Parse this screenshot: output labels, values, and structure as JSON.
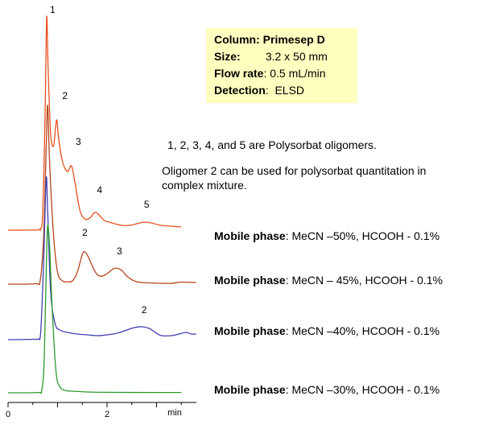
{
  "info_box": {
    "column_label": "Column",
    "column_value": "Primesep D",
    "size_label": "Size:",
    "size_value": "3.2 x 50 mm",
    "flow_label": "Flow rate",
    "flow_value": "0.5  mL/min",
    "detection_label": "Detection",
    "detection_value": "ELSD"
  },
  "notes": {
    "line1": "1, 2, 3, 4, and 5  are Polysorbat oligomers.",
    "line2": "Oligomer 2 can be used for polysorbat quantitation in",
    "line3": "complex mixture."
  },
  "mobile_phase_label": "Mobile phase",
  "chart_data": {
    "type": "line",
    "xlabel": "min",
    "x_ticks": [
      "0",
      "2"
    ],
    "xlim": [
      0,
      3.8
    ],
    "y_axis_shown": false,
    "grid": false,
    "series": [
      {
        "name": "MeCN –50%, HCOOH - 0.1%",
        "color": "#e8501e",
        "points": [
          [
            0,
            0
          ],
          [
            0.6,
            0.4
          ],
          [
            0.65,
            2
          ],
          [
            0.7,
            20
          ],
          [
            0.75,
            150
          ],
          [
            0.78,
            265
          ],
          [
            0.81,
            200
          ],
          [
            0.86,
            120
          ],
          [
            0.92,
            105
          ],
          [
            0.98,
            137
          ],
          [
            1.02,
            115
          ],
          [
            1.1,
            85
          ],
          [
            1.2,
            73
          ],
          [
            1.28,
            80
          ],
          [
            1.35,
            60
          ],
          [
            1.45,
            25
          ],
          [
            1.55,
            14
          ],
          [
            1.65,
            15
          ],
          [
            1.75,
            22
          ],
          [
            1.82,
            20
          ],
          [
            1.95,
            12
          ],
          [
            2.1,
            9
          ],
          [
            2.3,
            6
          ],
          [
            2.45,
            6
          ],
          [
            2.6,
            8
          ],
          [
            2.75,
            10
          ],
          [
            2.9,
            9
          ],
          [
            3.1,
            6
          ],
          [
            3.5,
            4
          ]
        ],
        "peak_labels": [
          {
            "label": "1",
            "x": 0.9,
            "y": 270
          },
          {
            "label": "2",
            "x": 1.15,
            "y": 163
          },
          {
            "label": "3",
            "x": 1.42,
            "y": 106
          },
          {
            "label": "4",
            "x": 1.85,
            "y": 46
          },
          {
            "label": "5",
            "x": 2.8,
            "y": 28
          }
        ]
      },
      {
        "name": "MeCN – 45%, HCOOH - 0.1%",
        "color": "#b5441c",
        "points": [
          [
            0,
            0
          ],
          [
            0.55,
            0.5
          ],
          [
            0.65,
            5
          ],
          [
            0.72,
            60
          ],
          [
            0.77,
            170
          ],
          [
            0.8,
            222
          ],
          [
            0.84,
            150
          ],
          [
            0.92,
            60
          ],
          [
            1.0,
            15
          ],
          [
            1.1,
            4
          ],
          [
            1.2,
            3
          ],
          [
            1.3,
            4
          ],
          [
            1.4,
            15
          ],
          [
            1.5,
            37
          ],
          [
            1.55,
            40
          ],
          [
            1.62,
            34
          ],
          [
            1.72,
            20
          ],
          [
            1.8,
            12
          ],
          [
            1.9,
            10
          ],
          [
            2.0,
            13
          ],
          [
            2.1,
            18
          ],
          [
            2.18,
            20
          ],
          [
            2.3,
            17
          ],
          [
            2.4,
            10
          ],
          [
            2.55,
            4
          ],
          [
            2.7,
            2
          ],
          [
            2.9,
            1.5
          ],
          [
            3.1,
            1
          ],
          [
            3.3,
            1
          ],
          [
            3.5,
            2.5
          ],
          [
            3.8,
            2
          ]
        ],
        "peak_labels": [
          {
            "label": "2",
            "x": 1.55,
            "y": 60
          },
          {
            "label": "3",
            "x": 2.25,
            "y": 37
          }
        ]
      },
      {
        "name": "MeCN –40%, HCOOH - 0.1%",
        "color": "#4040b0",
        "points": [
          [
            0,
            0
          ],
          [
            0.5,
            0.5
          ],
          [
            0.6,
            1
          ],
          [
            0.66,
            10
          ],
          [
            0.72,
            100
          ],
          [
            0.77,
            200
          ],
          [
            0.8,
            160
          ],
          [
            0.86,
            60
          ],
          [
            0.95,
            20
          ],
          [
            1.05,
            12
          ],
          [
            1.2,
            9
          ],
          [
            1.4,
            7
          ],
          [
            1.6,
            6
          ],
          [
            1.8,
            5
          ],
          [
            2.0,
            6
          ],
          [
            2.2,
            8
          ],
          [
            2.4,
            12
          ],
          [
            2.55,
            15
          ],
          [
            2.7,
            16
          ],
          [
            2.85,
            14
          ],
          [
            3.0,
            8
          ],
          [
            3.1,
            5
          ],
          [
            3.3,
            5
          ],
          [
            3.45,
            7
          ],
          [
            3.6,
            9
          ],
          [
            3.7,
            7
          ],
          [
            3.8,
            7
          ]
        ],
        "peak_labels": [
          {
            "label": "2",
            "x": 2.75,
            "y": 33
          }
        ]
      },
      {
        "name": "MeCN –30%, HCOOH - 0.1%",
        "color": "#2d9a2d",
        "points": [
          [
            0,
            0
          ],
          [
            0.6,
            0.4
          ],
          [
            0.68,
            3
          ],
          [
            0.73,
            40
          ],
          [
            0.77,
            150
          ],
          [
            0.8,
            208
          ],
          [
            0.84,
            180
          ],
          [
            0.88,
            120
          ],
          [
            0.93,
            60
          ],
          [
            0.98,
            20
          ],
          [
            1.05,
            7
          ],
          [
            1.15,
            3
          ],
          [
            1.3,
            2
          ],
          [
            1.6,
            1
          ],
          [
            2.0,
            0.6
          ],
          [
            3.0,
            0.4
          ],
          [
            3.5,
            0.4
          ]
        ]
      }
    ]
  }
}
